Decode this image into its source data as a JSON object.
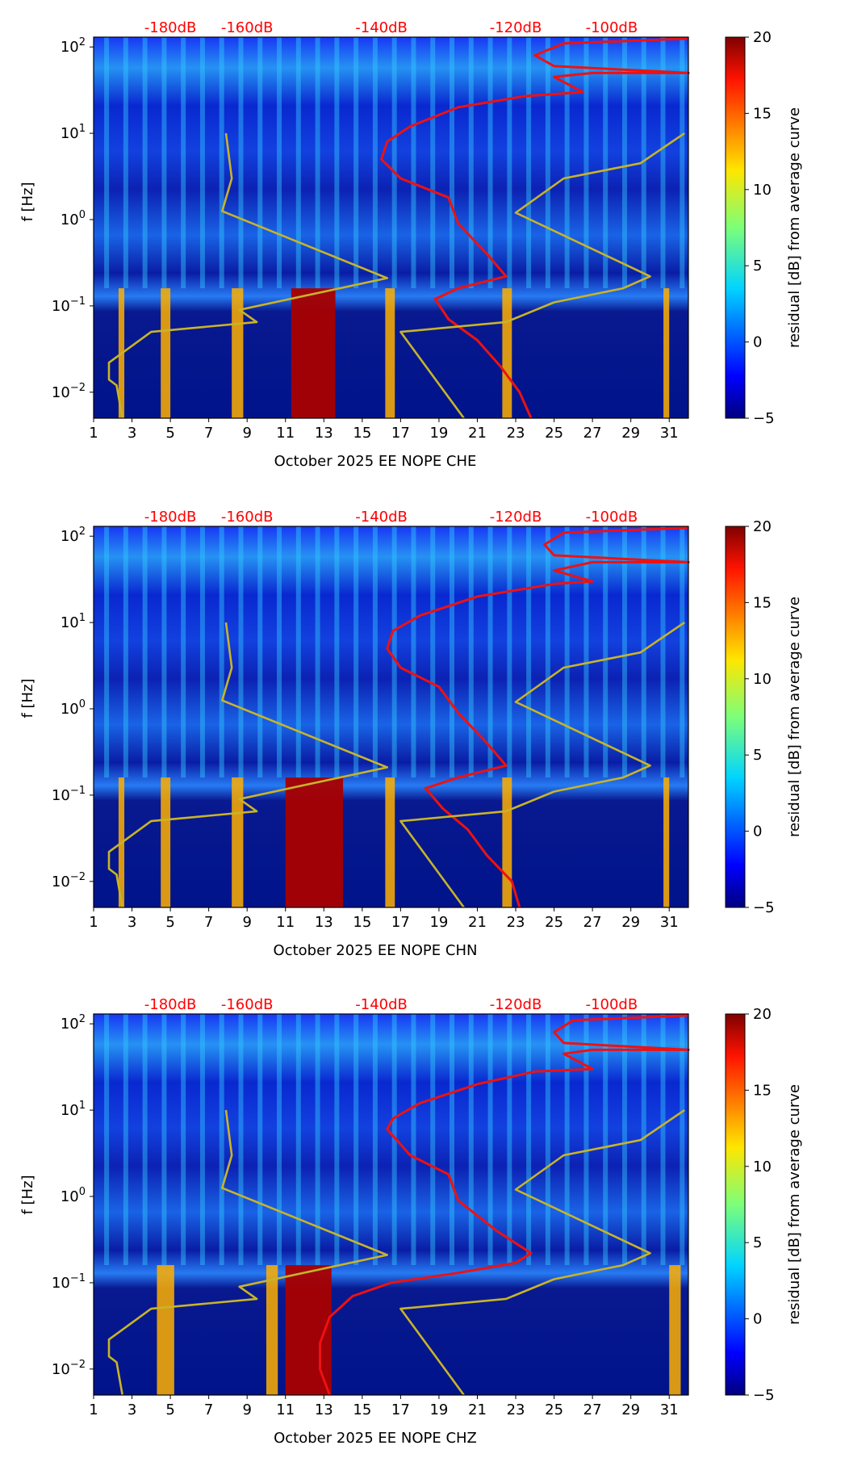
{
  "colors": {
    "db_label": "#ff0000",
    "red_curve": "#ee1111",
    "olive_curve": "#c8b428",
    "axis": "#000000"
  },
  "colorbar": {
    "label": "residual [dB] from average curve",
    "ticks": [
      "20",
      "15",
      "10",
      "5",
      "0",
      "−5"
    ],
    "range": [
      -5,
      20
    ]
  },
  "chart_data": [
    {
      "type": "heatmap",
      "component": "CHE",
      "xlabel": "October 2025 EE NOPE  CHE",
      "ylabel": "f [Hz]",
      "x_ticks": [
        "1",
        "3",
        "5",
        "7",
        "9",
        "11",
        "13",
        "15",
        "17",
        "19",
        "21",
        "23",
        "25",
        "27",
        "29",
        "31"
      ],
      "x_range": [
        1,
        32
      ],
      "y_scale": "log",
      "y_range": [
        0.005,
        130
      ],
      "y_ticks": [
        {
          "value": 100,
          "base": "10",
          "exp": "2"
        },
        {
          "value": 10,
          "base": "10",
          "exp": "1"
        },
        {
          "value": 1,
          "base": "10",
          "exp": "0"
        },
        {
          "value": 0.1,
          "base": "10",
          "exp": "−1"
        },
        {
          "value": 0.01,
          "base": "10",
          "exp": "−2"
        }
      ],
      "db_top_labels": [
        "-180dB",
        "-160dB",
        "-140dB",
        "-120dB",
        "-100dB"
      ],
      "db_top_positions": [
        5,
        9,
        16,
        23,
        28
      ],
      "hot_days": [
        [
          11.3,
          13.6
        ],
        [
          16.2,
          16.7
        ],
        [
          8.2,
          8.8
        ],
        [
          4.5,
          5.0
        ],
        [
          2.3,
          2.6
        ],
        [
          30.7,
          31.0
        ],
        [
          22.3,
          22.8
        ]
      ],
      "series": [
        {
          "name": "red noise curve",
          "points": [
            [
              23.8,
              0.005
            ],
            [
              23.2,
              0.01
            ],
            [
              22.2,
              0.02
            ],
            [
              21,
              0.04
            ],
            [
              19.5,
              0.07
            ],
            [
              18.8,
              0.12
            ],
            [
              20,
              0.16
            ],
            [
              22.5,
              0.22
            ],
            [
              21.5,
              0.4
            ],
            [
              20,
              0.9
            ],
            [
              19.5,
              1.8
            ],
            [
              17,
              3
            ],
            [
              16,
              5
            ],
            [
              16.3,
              8
            ],
            [
              17.5,
              12
            ],
            [
              20,
              20
            ],
            [
              23.5,
              27
            ],
            [
              26.5,
              30
            ],
            [
              25,
              45
            ],
            [
              27,
              50
            ],
            [
              32,
              50
            ],
            [
              25,
              60
            ],
            [
              24,
              80
            ],
            [
              25.5,
              110
            ],
            [
              32,
              125
            ]
          ]
        },
        {
          "name": "olive model curve",
          "points": [
            [
              2.5,
              0.005
            ],
            [
              2.2,
              0.012
            ],
            [
              1.8,
              0.014
            ],
            [
              1.8,
              0.022
            ],
            [
              4,
              0.05
            ],
            [
              9.5,
              0.065
            ],
            [
              8.6,
              0.09
            ],
            [
              16.3,
              0.21
            ],
            [
              7.7,
              1.25
            ],
            [
              8.2,
              3
            ],
            [
              7.9,
              10
            ]
          ]
        },
        {
          "name": "olive model curve 2",
          "points": [
            [
              20.3,
              0.005
            ],
            [
              17,
              0.05
            ],
            [
              22.5,
              0.065
            ],
            [
              25,
              0.11
            ],
            [
              28.6,
              0.16
            ],
            [
              30,
              0.22
            ],
            [
              23,
              1.2
            ],
            [
              25.5,
              3
            ],
            [
              29.5,
              4.5
            ],
            [
              31.8,
              10
            ]
          ]
        }
      ]
    },
    {
      "type": "heatmap",
      "component": "CHN",
      "xlabel": "October 2025 EE NOPE  CHN",
      "ylabel": "f [Hz]",
      "x_ticks": [
        "1",
        "3",
        "5",
        "7",
        "9",
        "11",
        "13",
        "15",
        "17",
        "19",
        "21",
        "23",
        "25",
        "27",
        "29",
        "31"
      ],
      "x_range": [
        1,
        32
      ],
      "y_scale": "log",
      "y_range": [
        0.005,
        130
      ],
      "y_ticks": [
        {
          "value": 100,
          "base": "10",
          "exp": "2"
        },
        {
          "value": 10,
          "base": "10",
          "exp": "1"
        },
        {
          "value": 1,
          "base": "10",
          "exp": "0"
        },
        {
          "value": 0.1,
          "base": "10",
          "exp": "−1"
        },
        {
          "value": 0.01,
          "base": "10",
          "exp": "−2"
        }
      ],
      "db_top_labels": [
        "-180dB",
        "-160dB",
        "-140dB",
        "-120dB",
        "-100dB"
      ],
      "db_top_positions": [
        5,
        9,
        16,
        23,
        28
      ],
      "hot_days": [
        [
          11.0,
          14.0
        ],
        [
          16.2,
          16.7
        ],
        [
          8.2,
          8.8
        ],
        [
          4.5,
          5.0
        ],
        [
          2.3,
          2.6
        ],
        [
          30.7,
          31.0
        ],
        [
          22.3,
          22.8
        ]
      ],
      "series": [
        {
          "name": "red noise curve",
          "points": [
            [
              23.2,
              0.005
            ],
            [
              22.8,
              0.01
            ],
            [
              21.5,
              0.02
            ],
            [
              20.5,
              0.04
            ],
            [
              19.2,
              0.07
            ],
            [
              18.3,
              0.12
            ],
            [
              20,
              0.16
            ],
            [
              22.5,
              0.22
            ],
            [
              21.5,
              0.4
            ],
            [
              20,
              0.9
            ],
            [
              19,
              1.8
            ],
            [
              17,
              3
            ],
            [
              16.3,
              5
            ],
            [
              16.6,
              8
            ],
            [
              18,
              12
            ],
            [
              21,
              20
            ],
            [
              25,
              28
            ],
            [
              27,
              30
            ],
            [
              25,
              40
            ],
            [
              27,
              50
            ],
            [
              32,
              50
            ],
            [
              25,
              60
            ],
            [
              24.5,
              80
            ],
            [
              25.5,
              110
            ],
            [
              32,
              125
            ]
          ]
        },
        {
          "name": "olive model curve",
          "points": [
            [
              2.5,
              0.005
            ],
            [
              2.2,
              0.012
            ],
            [
              1.8,
              0.014
            ],
            [
              1.8,
              0.022
            ],
            [
              4,
              0.05
            ],
            [
              9.5,
              0.065
            ],
            [
              8.6,
              0.09
            ],
            [
              16.3,
              0.21
            ],
            [
              7.7,
              1.25
            ],
            [
              8.2,
              3
            ],
            [
              7.9,
              10
            ]
          ]
        },
        {
          "name": "olive model curve 2",
          "points": [
            [
              20.3,
              0.005
            ],
            [
              17,
              0.05
            ],
            [
              22.5,
              0.065
            ],
            [
              25,
              0.11
            ],
            [
              28.6,
              0.16
            ],
            [
              30,
              0.22
            ],
            [
              23,
              1.2
            ],
            [
              25.5,
              3
            ],
            [
              29.5,
              4.5
            ],
            [
              31.8,
              10
            ]
          ]
        }
      ]
    },
    {
      "type": "heatmap",
      "component": "CHZ",
      "xlabel": "October 2025 EE NOPE  CHZ",
      "ylabel": "f [Hz]",
      "x_ticks": [
        "1",
        "3",
        "5",
        "7",
        "9",
        "11",
        "13",
        "15",
        "17",
        "19",
        "21",
        "23",
        "25",
        "27",
        "29",
        "31"
      ],
      "x_range": [
        1,
        32
      ],
      "y_scale": "log",
      "y_range": [
        0.005,
        130
      ],
      "y_ticks": [
        {
          "value": 100,
          "base": "10",
          "exp": "2"
        },
        {
          "value": 10,
          "base": "10",
          "exp": "1"
        },
        {
          "value": 1,
          "base": "10",
          "exp": "0"
        },
        {
          "value": 0.1,
          "base": "10",
          "exp": "−1"
        },
        {
          "value": 0.01,
          "base": "10",
          "exp": "−2"
        }
      ],
      "db_top_labels": [
        "-180dB",
        "-160dB",
        "-140dB",
        "-120dB",
        "-100dB"
      ],
      "db_top_positions": [
        5,
        9,
        16,
        23,
        28
      ],
      "hot_days": [
        [
          11.0,
          13.4
        ],
        [
          10.0,
          10.6
        ],
        [
          4.3,
          5.2
        ],
        [
          31.0,
          31.6
        ]
      ],
      "series": [
        {
          "name": "red noise curve",
          "points": [
            [
              13.3,
              0.005
            ],
            [
              12.8,
              0.01
            ],
            [
              12.8,
              0.02
            ],
            [
              13.3,
              0.04
            ],
            [
              14.5,
              0.07
            ],
            [
              16.5,
              0.1
            ],
            [
              20,
              0.13
            ],
            [
              23,
              0.17
            ],
            [
              23.8,
              0.22
            ],
            [
              22,
              0.4
            ],
            [
              20,
              0.9
            ],
            [
              19.5,
              1.8
            ],
            [
              17.5,
              3
            ],
            [
              16.3,
              6
            ],
            [
              16.6,
              8
            ],
            [
              18,
              12
            ],
            [
              21,
              20
            ],
            [
              24,
              28
            ],
            [
              27,
              30
            ],
            [
              25.5,
              45
            ],
            [
              27,
              50
            ],
            [
              32,
              50
            ],
            [
              25.5,
              60
            ],
            [
              25,
              80
            ],
            [
              26,
              110
            ],
            [
              32,
              125
            ]
          ]
        },
        {
          "name": "olive model curve",
          "points": [
            [
              2.5,
              0.005
            ],
            [
              2.2,
              0.012
            ],
            [
              1.8,
              0.014
            ],
            [
              1.8,
              0.022
            ],
            [
              4,
              0.05
            ],
            [
              9.5,
              0.065
            ],
            [
              8.6,
              0.09
            ],
            [
              16.3,
              0.21
            ],
            [
              7.7,
              1.25
            ],
            [
              8.2,
              3
            ],
            [
              7.9,
              10
            ]
          ]
        },
        {
          "name": "olive model curve 2",
          "points": [
            [
              20.3,
              0.005
            ],
            [
              17,
              0.05
            ],
            [
              22.5,
              0.065
            ],
            [
              25,
              0.11
            ],
            [
              28.6,
              0.16
            ],
            [
              30,
              0.22
            ],
            [
              23,
              1.2
            ],
            [
              25.5,
              3
            ],
            [
              29.5,
              4.5
            ],
            [
              31.8,
              10
            ]
          ]
        }
      ]
    }
  ]
}
